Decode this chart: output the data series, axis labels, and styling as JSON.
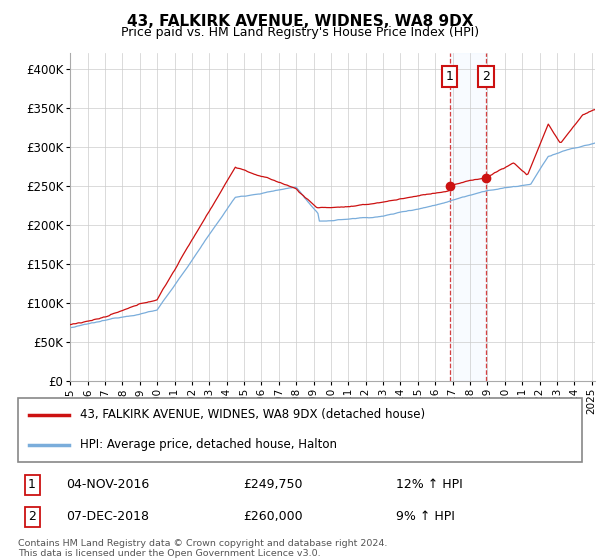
{
  "title": "43, FALKIRK AVENUE, WIDNES, WA8 9DX",
  "subtitle": "Price paid vs. HM Land Registry's House Price Index (HPI)",
  "ylim": [
    0,
    420000
  ],
  "yticks": [
    0,
    50000,
    100000,
    150000,
    200000,
    250000,
    300000,
    350000,
    400000
  ],
  "ytick_labels": [
    "£0",
    "£50K",
    "£100K",
    "£150K",
    "£200K",
    "£250K",
    "£300K",
    "£350K",
    "£400K"
  ],
  "hpi_color": "#7aaddb",
  "price_color": "#cc1111",
  "sale1_price": 249750,
  "sale1_hpi_text": "12% ↑ HPI",
  "sale1_date_text": "04-NOV-2016",
  "sale1_x": 2016.83,
  "sale2_price": 260000,
  "sale2_hpi_text": "9% ↑ HPI",
  "sale2_date_text": "07-DEC-2018",
  "sale2_x": 2018.92,
  "legend_label1": "43, FALKIRK AVENUE, WIDNES, WA8 9DX (detached house)",
  "legend_label2": "HPI: Average price, detached house, Halton",
  "footer1": "Contains HM Land Registry data © Crown copyright and database right 2024.",
  "footer2": "This data is licensed under the Open Government Licence v3.0.",
  "marker_box_color": "#cc1111",
  "vline_color": "#cc1111",
  "shade_color": "#ddeeff",
  "grid_color": "#cccccc",
  "spine_color": "#aaaaaa"
}
